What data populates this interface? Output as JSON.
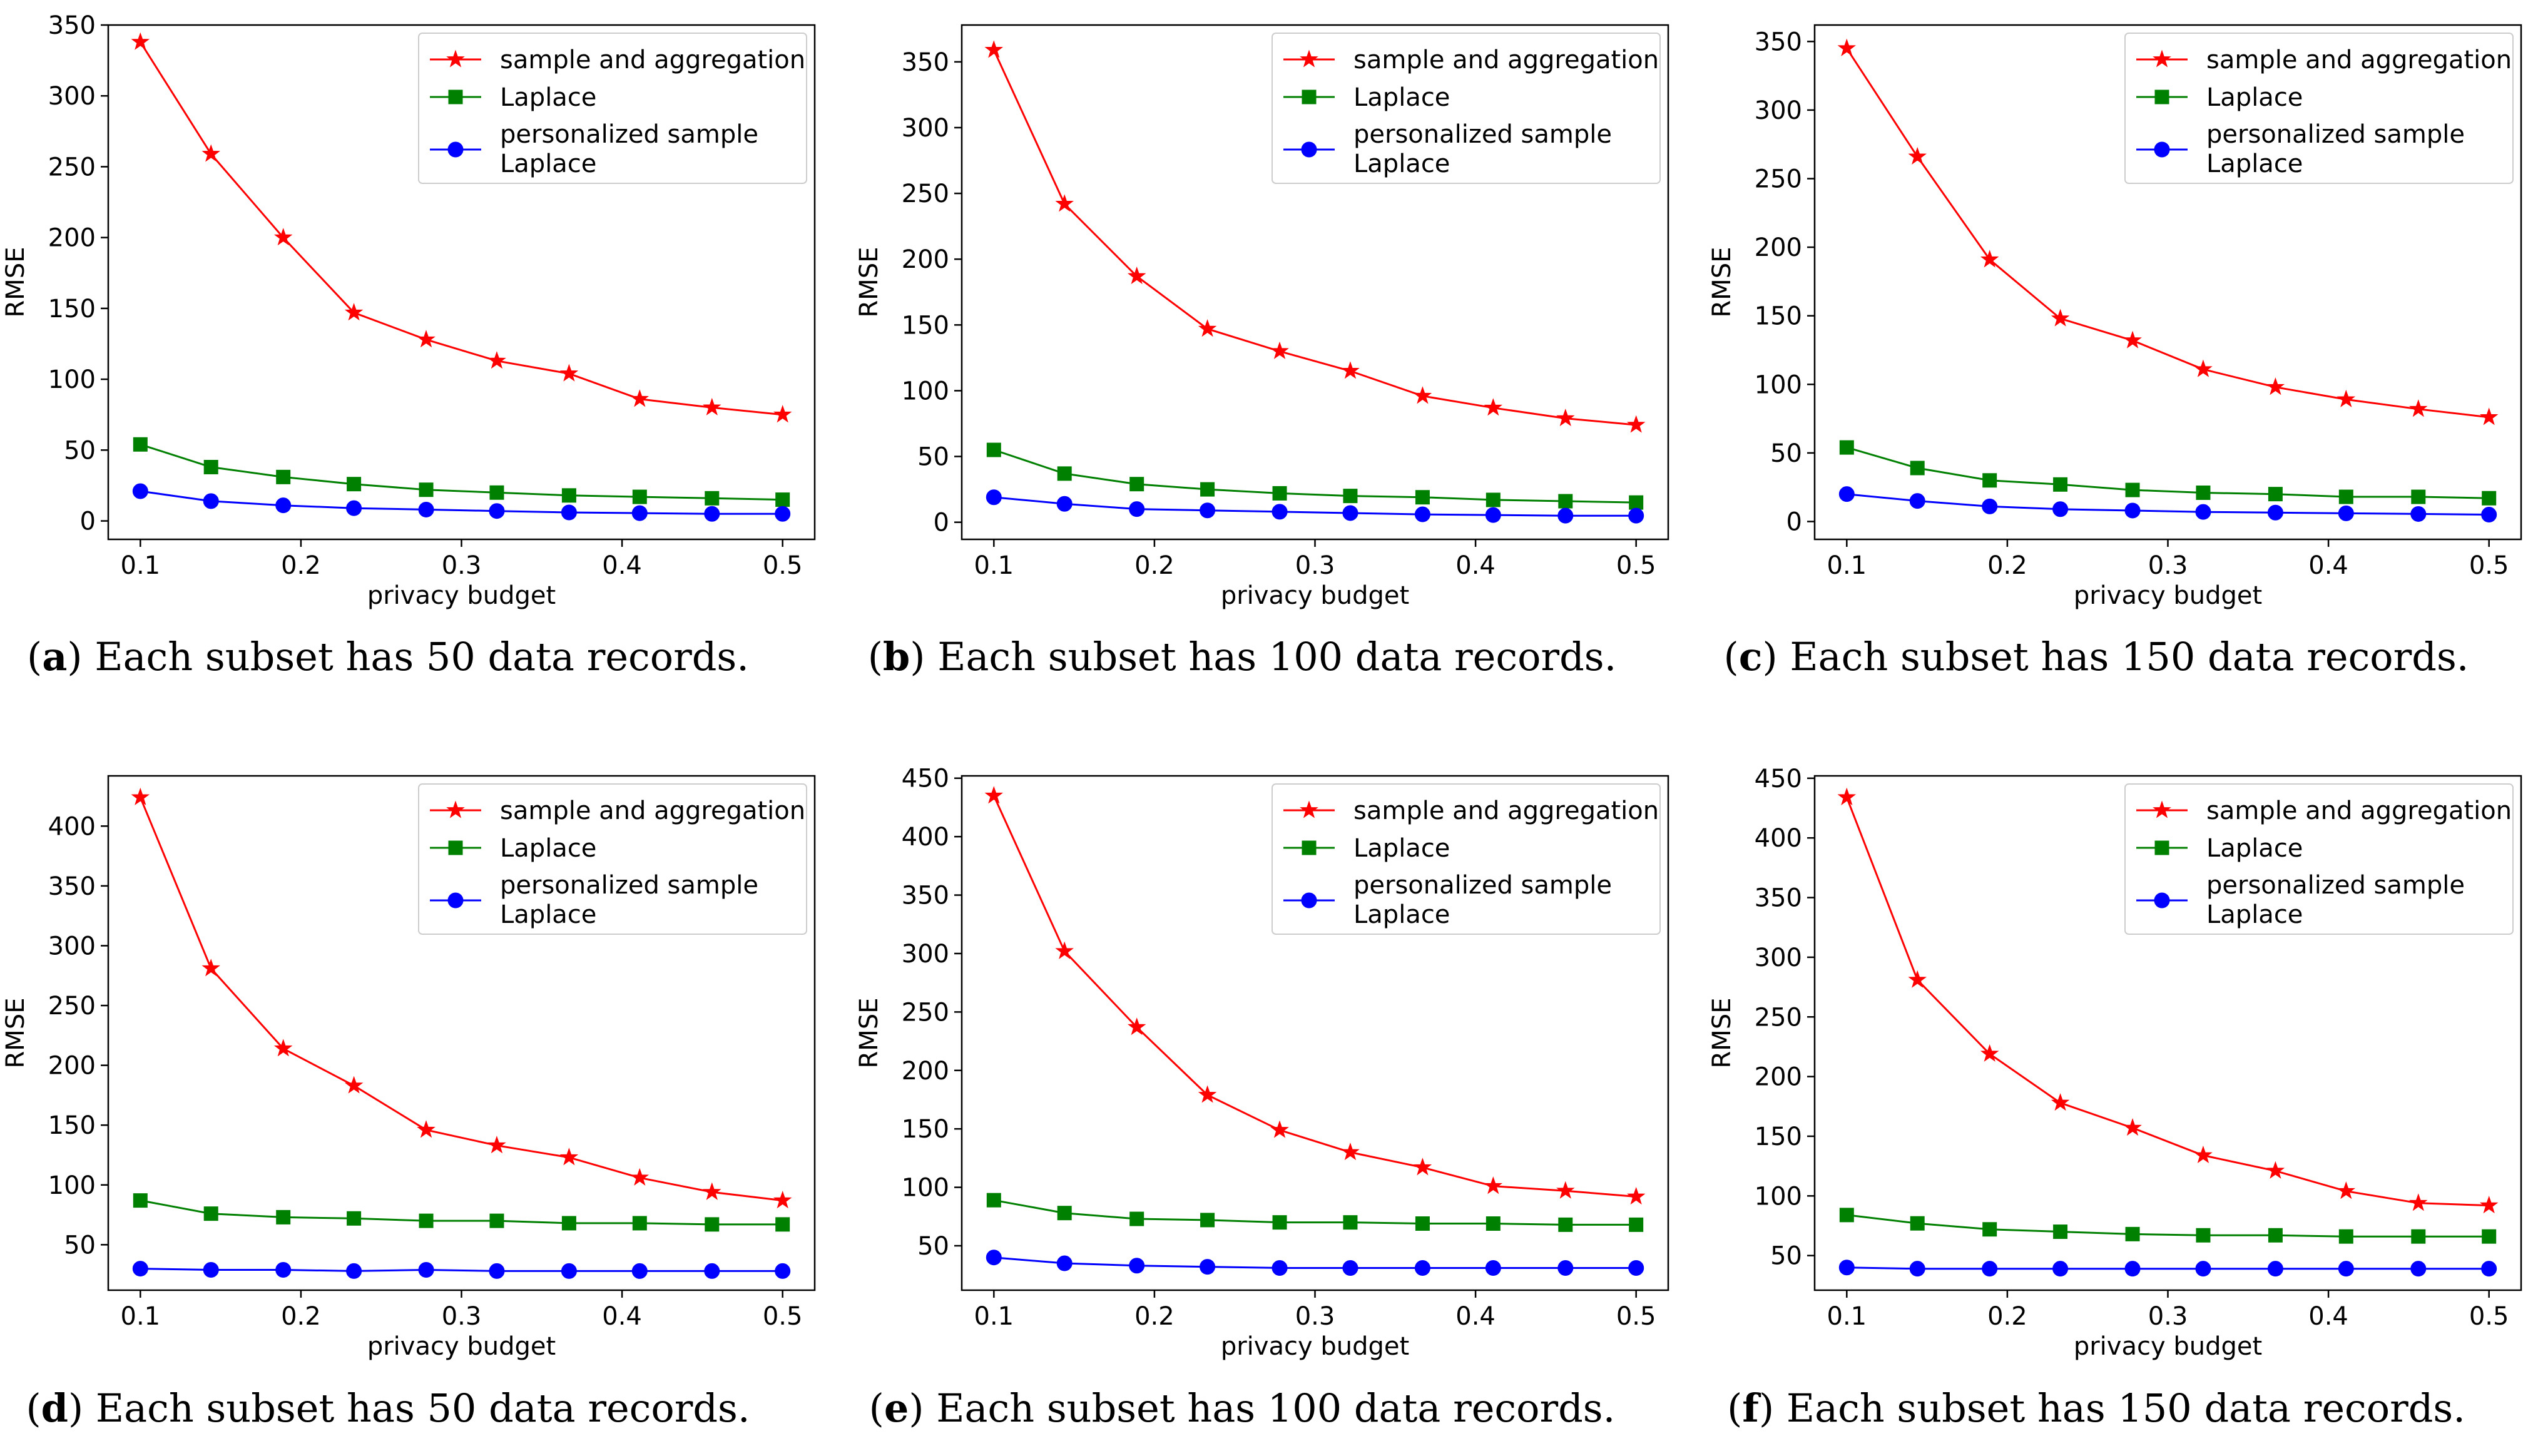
{
  "colors": {
    "sample_and_aggregation": "#ff0000",
    "laplace": "#008000",
    "personalized": "#0000ff"
  },
  "legend_labels": [
    "sample and aggregation",
    "Laplace",
    "personalized sample",
    "Laplace"
  ],
  "chart_data": [
    {
      "type": "line",
      "panel": "a",
      "caption_letter": "a",
      "caption_text": "Each subset has 50 data records.",
      "xlabel": "privacy budget",
      "ylabel": "RMSE",
      "legend_position": "top-right",
      "x": [
        0.1,
        0.144,
        0.189,
        0.233,
        0.278,
        0.322,
        0.367,
        0.411,
        0.456,
        0.5
      ],
      "xlim": [
        0.08,
        0.52
      ],
      "ylim": [
        -13,
        350
      ],
      "xticks": [
        0.1,
        0.2,
        0.3,
        0.4,
        0.5
      ],
      "xtick_labels": [
        "0.1",
        "0.2",
        "0.3",
        "0.4",
        "0.5"
      ],
      "yticks": [
        0,
        50,
        100,
        150,
        200,
        250,
        300,
        350
      ],
      "ytick_labels": [
        "0",
        "50",
        "100",
        "150",
        "200",
        "250",
        "300",
        "350"
      ],
      "series": [
        {
          "name": "sample and aggregation",
          "marker": "star",
          "values": [
            338,
            259,
            200,
            147,
            128,
            113,
            104,
            86,
            80,
            75
          ]
        },
        {
          "name": "Laplace",
          "marker": "square",
          "values": [
            54,
            38,
            31,
            26,
            22,
            20,
            18,
            17,
            16,
            15
          ]
        },
        {
          "name": "personalized sample Laplace",
          "marker": "circle",
          "values": [
            21,
            14,
            11,
            9,
            8,
            7,
            6,
            5.5,
            5,
            5
          ]
        }
      ]
    },
    {
      "type": "line",
      "panel": "b",
      "caption_letter": "b",
      "caption_text": "Each subset has 100 data records.",
      "xlabel": "privacy budget",
      "ylabel": "RMSE",
      "legend_position": "top-right",
      "x": [
        0.1,
        0.144,
        0.189,
        0.233,
        0.278,
        0.322,
        0.367,
        0.411,
        0.456,
        0.5
      ],
      "xlim": [
        0.08,
        0.52
      ],
      "ylim": [
        -13,
        378
      ],
      "xticks": [
        0.1,
        0.2,
        0.3,
        0.4,
        0.5
      ],
      "xtick_labels": [
        "0.1",
        "0.2",
        "0.3",
        "0.4",
        "0.5"
      ],
      "yticks": [
        0,
        50,
        100,
        150,
        200,
        250,
        300,
        350
      ],
      "ytick_labels": [
        "0",
        "50",
        "100",
        "150",
        "200",
        "250",
        "300",
        "350"
      ],
      "series": [
        {
          "name": "sample and aggregation",
          "marker": "star",
          "values": [
            359,
            242,
            187,
            147,
            130,
            115,
            96,
            87,
            79,
            74
          ]
        },
        {
          "name": "Laplace",
          "marker": "square",
          "values": [
            55,
            37,
            29,
            25,
            22,
            20,
            19,
            17,
            16,
            15
          ]
        },
        {
          "name": "personalized sample Laplace",
          "marker": "circle",
          "values": [
            19,
            14,
            10,
            9,
            8,
            7,
            6,
            5.5,
            5,
            5
          ]
        }
      ]
    },
    {
      "type": "line",
      "panel": "c",
      "caption_letter": "c",
      "caption_text": "Each subset has 150 data records.",
      "xlabel": "privacy budget",
      "ylabel": "RMSE",
      "legend_position": "top-right",
      "x": [
        0.1,
        0.144,
        0.189,
        0.233,
        0.278,
        0.322,
        0.367,
        0.411,
        0.456,
        0.5
      ],
      "xlim": [
        0.08,
        0.52
      ],
      "ylim": [
        -13,
        362
      ],
      "xticks": [
        0.1,
        0.2,
        0.3,
        0.4,
        0.5
      ],
      "xtick_labels": [
        "0.1",
        "0.2",
        "0.3",
        "0.4",
        "0.5"
      ],
      "yticks": [
        0,
        50,
        100,
        150,
        200,
        250,
        300,
        350
      ],
      "ytick_labels": [
        "0",
        "50",
        "100",
        "150",
        "200",
        "250",
        "300",
        "350"
      ],
      "series": [
        {
          "name": "sample and aggregation",
          "marker": "star",
          "values": [
            345,
            266,
            191,
            148,
            132,
            111,
            98,
            89,
            82,
            76
          ]
        },
        {
          "name": "Laplace",
          "marker": "square",
          "values": [
            54,
            39,
            30,
            27,
            23,
            21,
            20,
            18,
            18,
            17
          ]
        },
        {
          "name": "personalized sample Laplace",
          "marker": "circle",
          "values": [
            20,
            15,
            11,
            9,
            8,
            7,
            6.5,
            6,
            5.5,
            5
          ]
        }
      ]
    },
    {
      "type": "line",
      "panel": "d",
      "caption_letter": "d",
      "caption_text": "Each subset has 50 data records.",
      "xlabel": "privacy budget",
      "ylabel": "RMSE",
      "legend_position": "top-right",
      "x": [
        0.1,
        0.144,
        0.189,
        0.233,
        0.278,
        0.322,
        0.367,
        0.411,
        0.456,
        0.5
      ],
      "xlim": [
        0.08,
        0.52
      ],
      "ylim": [
        12,
        442
      ],
      "xticks": [
        0.1,
        0.2,
        0.3,
        0.4,
        0.5
      ],
      "xtick_labels": [
        "0.1",
        "0.2",
        "0.3",
        "0.4",
        "0.5"
      ],
      "yticks": [
        50,
        100,
        150,
        200,
        250,
        300,
        350,
        400
      ],
      "ytick_labels": [
        "50",
        "100",
        "150",
        "200",
        "250",
        "300",
        "350",
        "400"
      ],
      "series": [
        {
          "name": "sample and aggregation",
          "marker": "star",
          "values": [
            424,
            281,
            214,
            183,
            146,
            133,
            123,
            106,
            94,
            87
          ]
        },
        {
          "name": "Laplace",
          "marker": "square",
          "values": [
            87,
            76,
            73,
            72,
            70,
            70,
            68,
            68,
            67,
            67
          ]
        },
        {
          "name": "personalized sample Laplace",
          "marker": "circle",
          "values": [
            30,
            29,
            29,
            28,
            29,
            28,
            28,
            28,
            28,
            28
          ]
        }
      ]
    },
    {
      "type": "line",
      "panel": "e",
      "caption_letter": "e",
      "caption_text": "Each subset has 100 data records.",
      "xlabel": "privacy budget",
      "ylabel": "RMSE",
      "legend_position": "top-right",
      "x": [
        0.1,
        0.144,
        0.189,
        0.233,
        0.278,
        0.322,
        0.367,
        0.411,
        0.456,
        0.5
      ],
      "xlim": [
        0.08,
        0.52
      ],
      "ylim": [
        12,
        452
      ],
      "xticks": [
        0.1,
        0.2,
        0.3,
        0.4,
        0.5
      ],
      "xtick_labels": [
        "0.1",
        "0.2",
        "0.3",
        "0.4",
        "0.5"
      ],
      "yticks": [
        50,
        100,
        150,
        200,
        250,
        300,
        350,
        400,
        450
      ],
      "ytick_labels": [
        "50",
        "100",
        "150",
        "200",
        "250",
        "300",
        "350",
        "400",
        "450"
      ],
      "series": [
        {
          "name": "sample and aggregation",
          "marker": "star",
          "values": [
            435,
            302,
            237,
            179,
            149,
            130,
            117,
            101,
            97,
            92
          ]
        },
        {
          "name": "Laplace",
          "marker": "square",
          "values": [
            89,
            78,
            73,
            72,
            70,
            70,
            69,
            69,
            68,
            68
          ]
        },
        {
          "name": "personalized sample Laplace",
          "marker": "circle",
          "values": [
            40,
            35,
            33,
            32,
            31,
            31,
            31,
            31,
            31,
            31
          ]
        }
      ]
    },
    {
      "type": "line",
      "panel": "f",
      "caption_letter": "f",
      "caption_text": "Each subset has 150 data records.",
      "xlabel": "privacy budget",
      "ylabel": "RMSE",
      "legend_position": "top-right",
      "x": [
        0.1,
        0.144,
        0.189,
        0.233,
        0.278,
        0.322,
        0.367,
        0.411,
        0.456,
        0.5
      ],
      "xlim": [
        0.08,
        0.52
      ],
      "ylim": [
        21,
        452
      ],
      "xticks": [
        0.1,
        0.2,
        0.3,
        0.4,
        0.5
      ],
      "xtick_labels": [
        "0.1",
        "0.2",
        "0.3",
        "0.4",
        "0.5"
      ],
      "yticks": [
        50,
        100,
        150,
        200,
        250,
        300,
        350,
        400,
        450
      ],
      "ytick_labels": [
        "50",
        "100",
        "150",
        "200",
        "250",
        "300",
        "350",
        "400",
        "450"
      ],
      "series": [
        {
          "name": "sample and aggregation",
          "marker": "star",
          "values": [
            434,
            281,
            219,
            178,
            157,
            134,
            121,
            104,
            94,
            92
          ]
        },
        {
          "name": "Laplace",
          "marker": "square",
          "values": [
            84,
            77,
            72,
            70,
            68,
            67,
            67,
            66,
            66,
            66
          ]
        },
        {
          "name": "personalized sample Laplace",
          "marker": "circle",
          "values": [
            40,
            39,
            39,
            39,
            39,
            39,
            39,
            39,
            39,
            39
          ]
        }
      ]
    }
  ]
}
